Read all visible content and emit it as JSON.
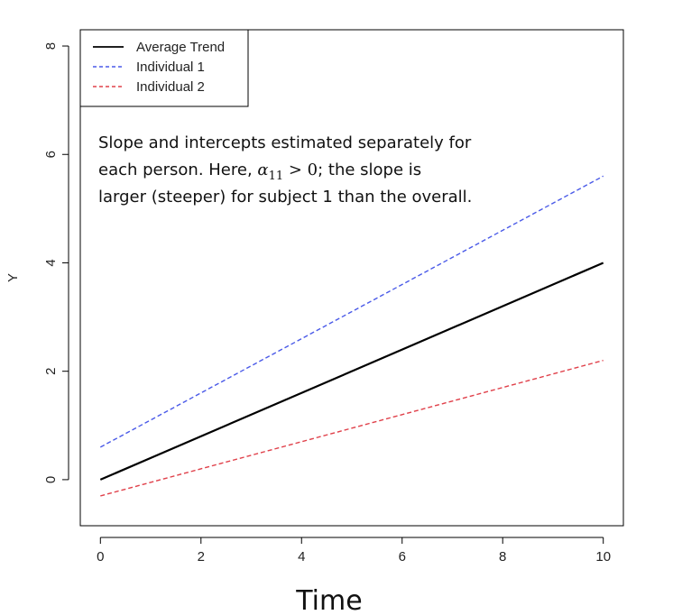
{
  "chart_data": {
    "type": "line",
    "title": "",
    "xlabel": "Time",
    "ylabel": "Y",
    "xlim": [
      -0.4,
      10.4
    ],
    "ylim": [
      -0.85,
      8.3
    ],
    "xticks": [
      0,
      2,
      4,
      6,
      8,
      10
    ],
    "yticks": [
      0,
      2,
      4,
      6,
      8
    ],
    "grid": false,
    "legend_position": "top-left",
    "series": [
      {
        "name": "Average Trend",
        "color": "#000000",
        "dash": "solid",
        "x": [
          0,
          10
        ],
        "y": [
          0,
          4
        ]
      },
      {
        "name": "Individual 1",
        "color": "#4a5ae8",
        "dash": "dashed",
        "x": [
          0,
          10
        ],
        "y": [
          0.6,
          5.6
        ]
      },
      {
        "name": "Individual 2",
        "color": "#e0404a",
        "dash": "dashed",
        "x": [
          0,
          10
        ],
        "y": [
          -0.3,
          2.2
        ]
      }
    ],
    "annotation": {
      "line1": "Slope and intercepts estimated separately for",
      "line2_before": "each person. Here, ",
      "math_symbol": "α",
      "math_subscript": "11",
      "math_relation": " > 0",
      "line2_after": "; the slope is",
      "line3": "larger (steeper) for subject 1 than the overall."
    }
  }
}
